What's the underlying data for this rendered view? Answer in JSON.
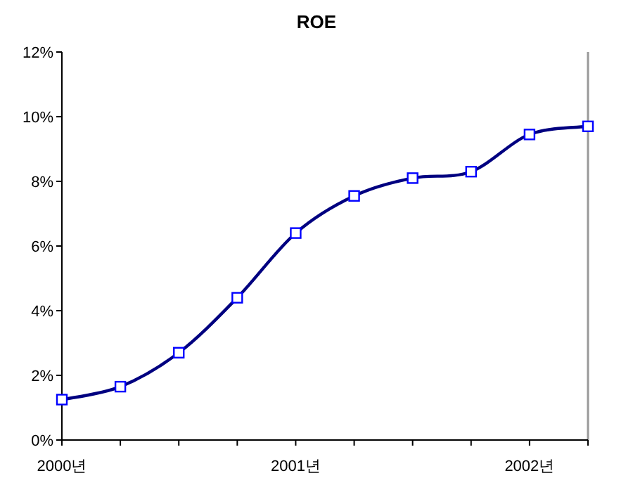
{
  "chart_data": {
    "type": "line",
    "title": "ROE",
    "categories": [
      "2000년",
      null,
      null,
      null,
      "2001년",
      null,
      null,
      null,
      "2002년",
      null
    ],
    "series": [
      {
        "color": "#000080",
        "values": [
          1.25,
          1.65,
          2.7,
          4.4,
          6.4,
          7.55,
          8.1,
          8.3,
          9.45,
          9.7
        ]
      }
    ],
    "ylim": [
      0,
      12
    ],
    "yticks": [
      {
        "value": 0,
        "label": "0%"
      },
      {
        "value": 2,
        "label": "2%"
      },
      {
        "value": 4,
        "label": "4%"
      },
      {
        "value": 6,
        "label": "6%"
      },
      {
        "value": 8,
        "label": "8%"
      },
      {
        "value": 10,
        "label": "10%"
      },
      {
        "value": 12,
        "label": "12%"
      }
    ],
    "marker": "square",
    "grid": false
  }
}
